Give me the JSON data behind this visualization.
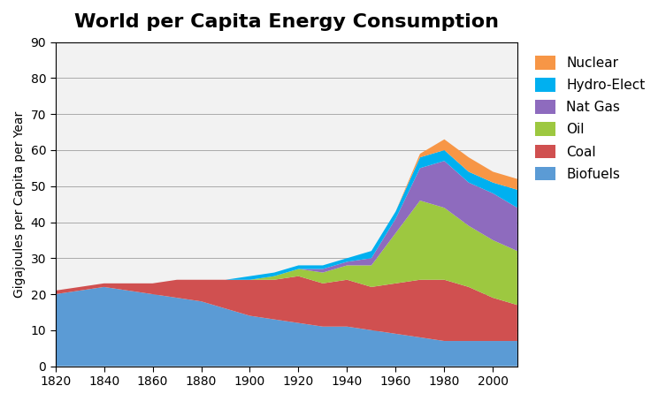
{
  "title": "World per Capita Energy Consumption",
  "ylabel": "Gigajoules per Capita per Year",
  "xlabel": "",
  "years": [
    1820,
    1830,
    1840,
    1850,
    1860,
    1870,
    1880,
    1890,
    1900,
    1910,
    1920,
    1930,
    1940,
    1950,
    1960,
    1970,
    1980,
    1990,
    2000,
    2010
  ],
  "biofuels": [
    20,
    21,
    22,
    21,
    20,
    19,
    18,
    16,
    14,
    13,
    12,
    11,
    11,
    10,
    9,
    8,
    7,
    7,
    7,
    7
  ],
  "coal": [
    1,
    1,
    1,
    2,
    3,
    5,
    6,
    8,
    10,
    11,
    13,
    12,
    13,
    12,
    14,
    16,
    17,
    15,
    12,
    10
  ],
  "oil": [
    0,
    0,
    0,
    0,
    0,
    0,
    0,
    0,
    0,
    1,
    2,
    3,
    4,
    6,
    14,
    22,
    20,
    17,
    16,
    15
  ],
  "natgas": [
    0,
    0,
    0,
    0,
    0,
    0,
    0,
    0,
    0,
    0,
    0,
    1,
    1,
    2,
    4,
    9,
    13,
    12,
    13,
    12
  ],
  "hydroelect": [
    0,
    0,
    0,
    0,
    0,
    0,
    0,
    0,
    1,
    1,
    1,
    1,
    1,
    2,
    2,
    3,
    3,
    3,
    3,
    5
  ],
  "nuclear": [
    0,
    0,
    0,
    0,
    0,
    0,
    0,
    0,
    0,
    0,
    0,
    0,
    0,
    0,
    0,
    1,
    3,
    4,
    3,
    3
  ],
  "colors": {
    "biofuels": "#5B9BD5",
    "coal": "#D05050",
    "oil": "#9DC840",
    "natgas": "#8E6BBE",
    "hydroelect": "#00B0F0",
    "nuclear": "#F79646"
  },
  "labels": {
    "biofuels": "Biofuels",
    "coal": "Coal",
    "oil": "Oil",
    "natgas": "Nat Gas",
    "hydroelect": "Hydro-Elect",
    "nuclear": "Nuclear"
  },
  "ylim": [
    0,
    90
  ],
  "xlim": [
    1820,
    2010
  ],
  "yticks": [
    0,
    10,
    20,
    30,
    40,
    50,
    60,
    70,
    80,
    90
  ],
  "xticks": [
    1820,
    1840,
    1860,
    1880,
    1900,
    1920,
    1940,
    1960,
    1980,
    2000
  ],
  "title_fontsize": 16,
  "label_fontsize": 10,
  "tick_fontsize": 10,
  "background_color": "#F2F2F2",
  "grid_color": "#AAAAAA"
}
